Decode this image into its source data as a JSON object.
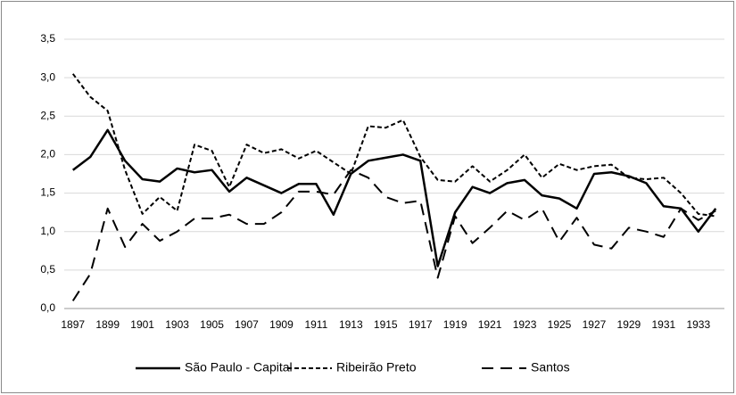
{
  "chart_data": {
    "type": "line",
    "categories": [
      1897,
      null,
      1899,
      null,
      1901,
      null,
      1903,
      null,
      1905,
      null,
      1907,
      null,
      1909,
      null,
      1911,
      null,
      1913,
      null,
      1915,
      null,
      1917,
      null,
      1919,
      null,
      1921,
      null,
      1923,
      null,
      1925,
      null,
      1927,
      null,
      1929,
      null,
      1931,
      null,
      1933,
      null
    ],
    "series": [
      {
        "name": "São Paulo - Capital",
        "color": "#000000",
        "dash": "solid",
        "values": [
          1.8,
          1.97,
          2.32,
          1.92,
          1.68,
          1.65,
          1.82,
          1.77,
          1.8,
          1.52,
          1.7,
          1.6,
          1.5,
          1.62,
          1.62,
          1.22,
          1.75,
          1.92,
          1.96,
          2.0,
          1.92,
          0.55,
          1.25,
          1.58,
          1.5,
          1.63,
          1.67,
          1.47,
          1.43,
          1.3,
          1.75,
          1.77,
          1.72,
          1.63,
          1.33,
          1.3,
          1.0,
          1.3
        ]
      },
      {
        "name": "Ribeirão Preto",
        "color": "#000000",
        "dash": "short",
        "values": [
          3.05,
          2.75,
          2.57,
          1.8,
          1.23,
          1.45,
          1.27,
          2.13,
          2.05,
          1.58,
          2.13,
          2.02,
          2.07,
          1.95,
          2.05,
          1.9,
          1.75,
          2.37,
          2.35,
          2.45,
          1.97,
          1.67,
          1.65,
          1.85,
          1.65,
          1.8,
          2.0,
          1.7,
          1.88,
          1.8,
          1.85,
          1.87,
          1.7,
          1.68,
          1.7,
          1.5,
          1.23,
          1.2
        ]
      },
      {
        "name": "Santos",
        "color": "#000000",
        "dash": "long",
        "values": [
          0.1,
          0.45,
          1.3,
          0.8,
          1.1,
          0.88,
          1.0,
          1.17,
          1.17,
          1.22,
          1.1,
          1.1,
          1.25,
          1.52,
          1.52,
          1.48,
          1.8,
          1.7,
          1.45,
          1.37,
          1.4,
          0.4,
          1.2,
          0.85,
          1.05,
          1.27,
          1.15,
          1.3,
          0.87,
          1.18,
          0.83,
          0.78,
          1.05,
          1.0,
          0.93,
          1.3,
          1.15,
          1.27
        ]
      }
    ],
    "ylim": [
      0,
      3.5
    ],
    "yticks": [
      {
        "value": 0,
        "label": "0,0"
      },
      {
        "value": 0.5,
        "label": "0,5"
      },
      {
        "value": 1,
        "label": "1,0"
      },
      {
        "value": 1.5,
        "label": "1,5"
      },
      {
        "value": 2,
        "label": "2,0"
      },
      {
        "value": 2.5,
        "label": "2,5"
      },
      {
        "value": 3,
        "label": "3,0"
      },
      {
        "value": 3.5,
        "label": "3,5"
      }
    ],
    "grid": true,
    "legend": "bottom"
  }
}
